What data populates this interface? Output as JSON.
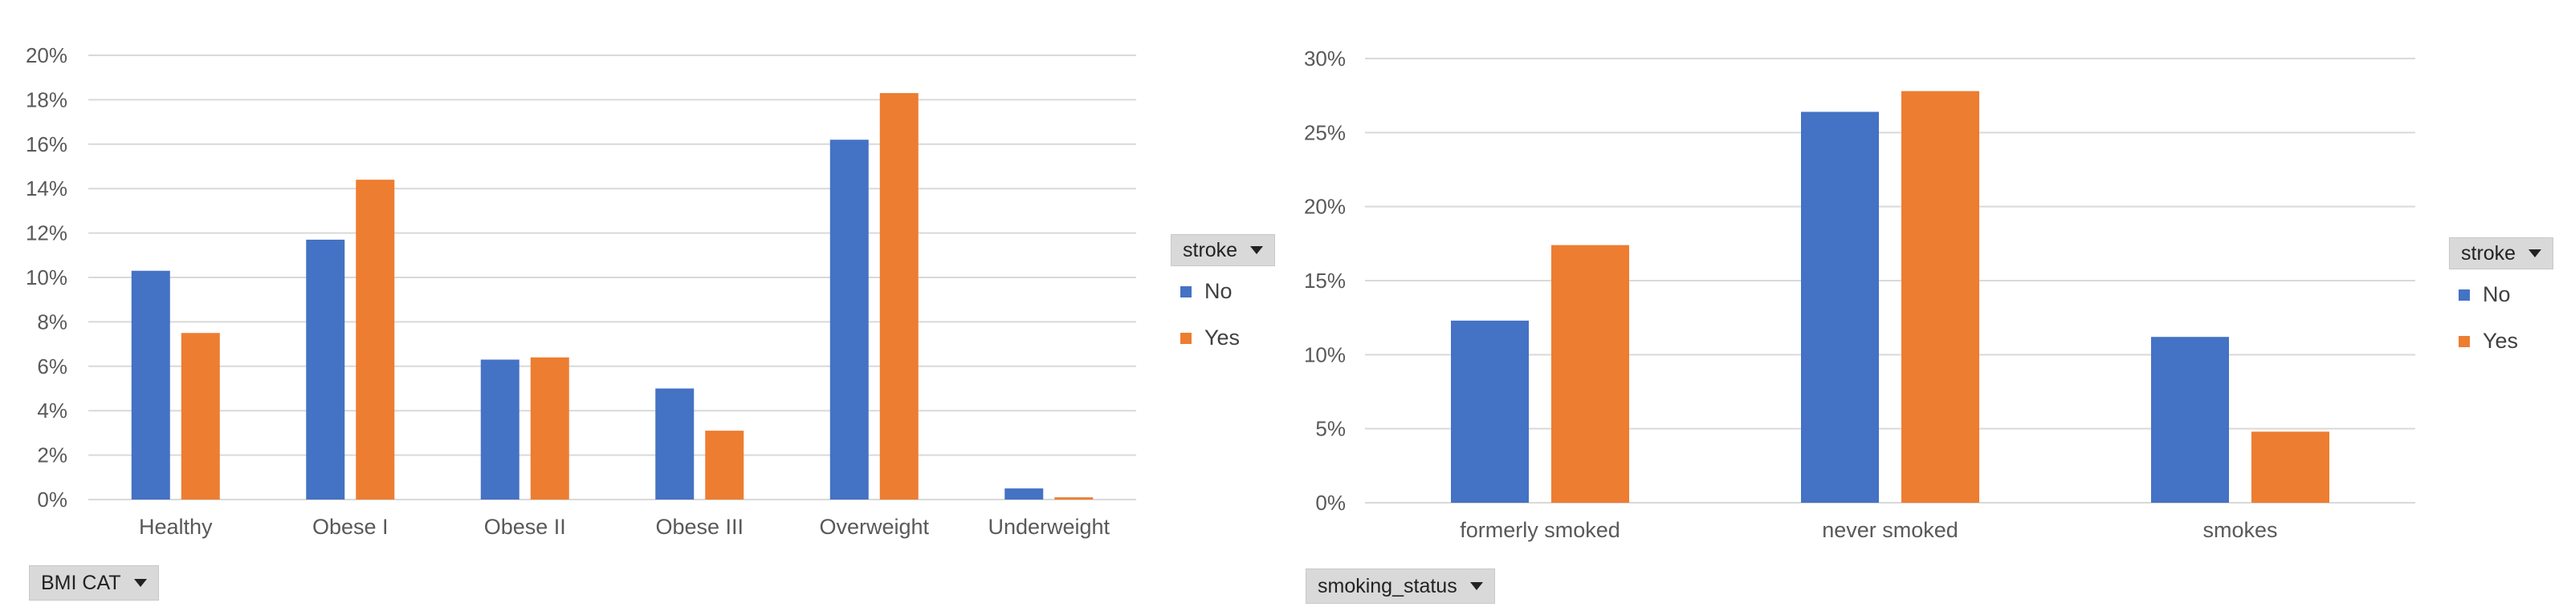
{
  "colors": {
    "no": "#4472C4",
    "yes": "#ED7D31",
    "grid": "#d9d9d9",
    "axis_text": "#595959"
  },
  "chart_data": [
    {
      "type": "bar",
      "title": "",
      "xlabel": "",
      "ylabel": "",
      "categories": [
        "Healthy",
        "Obese I",
        "Obese II",
        "Obese III",
        "Overweight",
        "Underweight"
      ],
      "series": [
        {
          "name": "No",
          "values": [
            10.3,
            11.7,
            6.3,
            5.0,
            16.2,
            0.5
          ]
        },
        {
          "name": "Yes",
          "values": [
            7.5,
            14.4,
            6.4,
            3.1,
            18.3,
            0.1
          ]
        }
      ],
      "ylim": [
        0,
        20
      ],
      "yticks": [
        "0%",
        "2%",
        "4%",
        "6%",
        "8%",
        "10%",
        "12%",
        "14%",
        "16%",
        "18%",
        "20%"
      ],
      "grid": true,
      "legend": {
        "title": "stroke",
        "position": "right",
        "entries": [
          "No",
          "Yes"
        ]
      },
      "field_button": "BMI CAT"
    },
    {
      "type": "bar",
      "title": "",
      "xlabel": "",
      "ylabel": "",
      "categories": [
        "formerly smoked",
        "never smoked",
        "smokes"
      ],
      "series": [
        {
          "name": "No",
          "values": [
            12.3,
            26.4,
            11.2
          ]
        },
        {
          "name": "Yes",
          "values": [
            17.4,
            27.8,
            4.8
          ]
        }
      ],
      "ylim": [
        0,
        30
      ],
      "yticks": [
        "0%",
        "5%",
        "10%",
        "15%",
        "20%",
        "25%",
        "30%"
      ],
      "grid": true,
      "legend": {
        "title": "stroke",
        "position": "right",
        "entries": [
          "No",
          "Yes"
        ]
      },
      "field_button": "smoking_status"
    }
  ]
}
